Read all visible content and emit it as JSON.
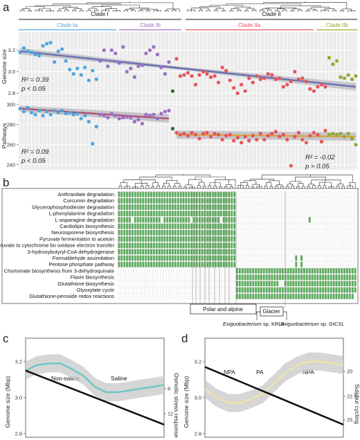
{
  "panel_labels": {
    "a": "a",
    "b": "b",
    "c": "c",
    "d": "d"
  },
  "colors": {
    "clade_ia": "#4fa6e0",
    "clade_ib": "#9b6fc4",
    "clade_iia": "#e8535a",
    "clade_iib": "#8faa2e",
    "outlier": "#2e6b2e",
    "heat_on": "#5aaa5a",
    "trend": "#6a6fb0",
    "trend_ia": "#b04a6a",
    "trend_ii": "#d9a23a",
    "loess_c": "#6cc6c8",
    "loess_d": "#f1e3a8"
  },
  "chart_data": [
    {
      "type": "scatter",
      "id": "a-top",
      "clades_top": [
        {
          "name": "Clade I"
        },
        {
          "name": "Clade II"
        }
      ],
      "subclades": [
        {
          "name": "Clade Ia"
        },
        {
          "name": "Clade Ib"
        },
        {
          "name": "Clade IIa"
        },
        {
          "name": "Clade IIb"
        }
      ],
      "ylabel": "Genome size",
      "ylim": [
        2.72,
        3.37
      ],
      "yticks": [
        "3.2",
        "3.0",
        "2.8"
      ],
      "ytick_values": [
        3.2,
        3.0,
        2.8
      ],
      "n_strains": 89,
      "series": [
        {
          "name": "Clade Ia",
          "x": [
            1,
            2,
            3,
            4,
            5,
            6,
            7,
            8,
            9,
            10,
            11,
            12,
            13,
            14,
            15,
            16,
            17,
            18,
            19,
            20,
            21
          ],
          "values": [
            3.18,
            3.22,
            3.19,
            3.18,
            3.16,
            3.15,
            3.24,
            3.26,
            3.27,
            3.09,
            3.19,
            3.21,
            3.1,
            3.02,
            2.98,
            3.03,
            2.97,
            3.04,
            2.92,
            3.01,
            2.93
          ]
        },
        {
          "name": "Clade Ib",
          "x": [
            22,
            23,
            24,
            25,
            26,
            27,
            28,
            29,
            30,
            31,
            32,
            33,
            34,
            35,
            36,
            37,
            38,
            39,
            40
          ],
          "values": [
            3.1,
            3.2,
            3.05,
            3.2,
            3.17,
            3.08,
            3.23,
            3.0,
            3.03,
            2.95,
            3.05,
            3.06,
            3.17,
            3.2,
            3.23,
            3.16,
            3.04,
            2.98,
            3.09
          ]
        },
        {
          "name": "Clade IIa",
          "x": [
            42,
            43,
            44,
            45,
            46,
            47,
            48,
            49,
            50,
            51,
            52,
            53,
            54,
            55,
            56,
            57,
            58,
            59,
            60,
            61,
            62,
            63,
            64,
            65,
            66,
            67,
            68,
            69,
            70,
            71,
            72,
            73,
            74,
            75,
            76,
            77,
            78,
            79,
            80,
            81
          ],
          "values": [
            3.12,
            2.96,
            2.97,
            2.99,
            2.96,
            2.88,
            2.97,
            3.0,
            2.98,
            2.95,
            2.96,
            2.9,
            3.04,
            3.01,
            2.92,
            2.85,
            2.8,
            2.88,
            2.82,
            2.94,
            2.9,
            2.96,
            2.93,
            2.94,
            2.98,
            2.97,
            2.93,
            2.94,
            2.86,
            2.88,
            2.91,
            3.0,
            2.93,
            2.94,
            2.91,
            2.84,
            2.82,
            2.86,
            2.88,
            2.86
          ]
        },
        {
          "name": "Clade IIb",
          "x": [
            82,
            83,
            84,
            85,
            86,
            87,
            88,
            89
          ],
          "values": [
            3.13,
            3.07,
            3.1,
            2.95,
            2.94,
            2.97,
            2.93,
            2.96
          ]
        },
        {
          "name": "Outlier",
          "x": [
            41
          ],
          "values": [
            2.82
          ]
        }
      ],
      "trend": {
        "from": [
          1,
          3.19
        ],
        "to": [
          89,
          2.86
        ]
      },
      "stats": {
        "r2": "R² = 0.39",
        "p": "p < 0.05"
      }
    },
    {
      "type": "scatter",
      "id": "a-bottom",
      "ylabel": "Pathways",
      "ylim": [
        235,
        302
      ],
      "yticks": [
        "300",
        "280",
        "260",
        "240"
      ],
      "ytick_values": [
        300,
        280,
        260,
        240
      ],
      "series": [
        {
          "name": "Clade Ia",
          "x": [
            1,
            2,
            3,
            4,
            5,
            6,
            7,
            8,
            9,
            10,
            11,
            12,
            13,
            14,
            15,
            16,
            17,
            18,
            19,
            20,
            21
          ],
          "values": [
            296,
            293,
            297,
            292,
            290,
            294,
            289,
            293,
            290,
            294,
            292,
            294,
            291,
            292,
            290,
            291,
            286,
            289,
            283,
            261,
            278
          ]
        },
        {
          "name": "Clade Ib",
          "x": [
            22,
            23,
            24,
            25,
            26,
            27,
            28,
            29,
            30,
            31,
            32,
            33,
            34,
            35,
            36,
            37,
            38,
            39,
            40
          ],
          "values": [
            290,
            289,
            287,
            291,
            289,
            286,
            287,
            288,
            287,
            283,
            285,
            281,
            290,
            289,
            290,
            286,
            291,
            293,
            294
          ]
        },
        {
          "name": "Clade IIa",
          "x": [
            42,
            43,
            44,
            45,
            46,
            47,
            48,
            49,
            50,
            51,
            52,
            53,
            54,
            55,
            56,
            57,
            58,
            59,
            60,
            61,
            62,
            63,
            64,
            65,
            66,
            67,
            68,
            69,
            70,
            71,
            72,
            73,
            74,
            75,
            76,
            77,
            78,
            79,
            80,
            81
          ],
          "values": [
            272,
            270,
            271,
            269,
            272,
            270,
            266,
            271,
            272,
            268,
            271,
            270,
            265,
            269,
            270,
            264,
            267,
            262,
            268,
            264,
            269,
            265,
            271,
            265,
            269,
            271,
            273,
            268,
            270,
            265,
            239,
            268,
            272,
            265,
            262,
            269,
            272,
            270,
            263,
            274
          ]
        },
        {
          "name": "Clade IIb",
          "x": [
            82,
            83,
            84,
            85,
            86,
            87,
            88,
            89
          ],
          "values": [
            270,
            271,
            270,
            271,
            268,
            271,
            266,
            260
          ]
        },
        {
          "name": "Outlier",
          "x": [
            41
          ],
          "values": [
            276
          ]
        }
      ],
      "trend_1": {
        "from": [
          1,
          296
        ],
        "to": [
          40,
          286
        ]
      },
      "trend_2": {
        "from": [
          42,
          270
        ],
        "to": [
          89,
          268
        ]
      },
      "stats_1": {
        "r2": "R² = 0.09",
        "p": "p < 0.05"
      },
      "stats_2": {
        "r2": "R² = -0.02",
        "p": "p > 0.05"
      }
    },
    {
      "type": "heatmap",
      "id": "b",
      "rows": [
        "Anthranilate degradation",
        "Curcumin degradation",
        "Glycerophosphodiester degradation",
        "L-phenylalanine degradation",
        "L-asparagine degradation",
        "Cardiolipin biosynthesis",
        "Neurosporene biosynthesis",
        "Pyruvate fermentation to acetoin",
        "Pyruvate to cytochrome bo oxidase electron transfer",
        "3-hydroxybutyryl-CoA dehydrogenase",
        "Formaldehyde assimilation",
        "Pentose phosphate pathway",
        "Chorismate biosynthesis from 3-dehydroquinate",
        "Flavin biosynthesis",
        "Glutathione biosynthesis",
        "Glyoxylate cycle",
        "Glutathione-peroxide redox reactions"
      ],
      "n_cols": 89,
      "clade_i_cols": 44,
      "annotations": {
        "polar": "Polar and alpine",
        "glacier": "Glacier",
        "krl4_genus": "Exiguobacterium",
        "krl4_strain": " sp. KRL4",
        "gic31_genus": "Exiguobacterium",
        "gic31_strain": " sp. GIC31"
      }
    },
    {
      "type": "line",
      "id": "c",
      "ylabel": "Genome size (Mbp)",
      "y2label": "Osmotic stress response",
      "yticks": [
        "3.2",
        "3.0",
        "2.8"
      ],
      "y2ticks": [
        "8",
        "12"
      ],
      "groups": [
        "Non-saline",
        "Saline"
      ],
      "trend": {
        "from": [
          0,
          3.15
        ],
        "to": [
          1,
          2.85
        ]
      },
      "loess": {
        "x": [
          0,
          0.08,
          0.17,
          0.25,
          0.33,
          0.42,
          0.5,
          0.58,
          0.67,
          0.75,
          0.83,
          0.92,
          1
        ],
        "values": [
          3.15,
          3.18,
          3.19,
          3.19,
          3.16,
          3.12,
          3.06,
          3.03,
          3.03,
          3.04,
          3.05,
          3.06,
          3.07
        ]
      }
    },
    {
      "type": "line",
      "id": "d",
      "ylabel": "Genome size (Mbp)",
      "y2label": "Sulphur cycling",
      "yticks": [
        "3.2",
        "3.0",
        "2.8"
      ],
      "y2ticks": [
        "20",
        "22.5",
        "25"
      ],
      "groups": [
        "NPA",
        "PA",
        "NPA"
      ],
      "trend": {
        "from": [
          0,
          3.17
        ],
        "to": [
          1,
          2.85
        ]
      },
      "loess": {
        "x": [
          0,
          0.08,
          0.17,
          0.25,
          0.33,
          0.42,
          0.5,
          0.58,
          0.67,
          0.75,
          0.83,
          0.92,
          1
        ],
        "values": [
          3.05,
          3.0,
          2.97,
          2.97,
          2.99,
          3.02,
          3.08,
          3.14,
          3.18,
          3.2,
          3.2,
          3.19,
          3.18
        ]
      }
    }
  ]
}
